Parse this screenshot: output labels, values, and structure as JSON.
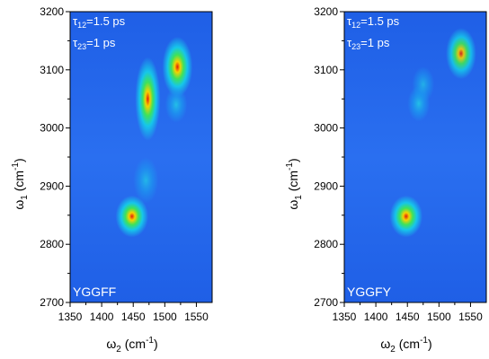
{
  "chart_data": [
    {
      "type": "heatmap",
      "title": "",
      "xlabel_base": "ω",
      "xlabel_sub": "2",
      "xlabel_unit_pre": " (cm",
      "xlabel_unit_sup": "-1",
      "xlabel_unit_post": ")",
      "ylabel_base": "ω",
      "ylabel_sub": "1",
      "ylabel_unit_pre": " (cm",
      "ylabel_unit_sup": "-1",
      "ylabel_unit_post": ")",
      "xlim": [
        1350,
        1575
      ],
      "ylim": [
        2700,
        3200
      ],
      "x_ticks": [
        "1350",
        "1400",
        "1450",
        "1500",
        "1550"
      ],
      "x_tick_values": [
        1350,
        1400,
        1450,
        1500,
        1550
      ],
      "y_ticks": [
        "2700",
        "2800",
        "2900",
        "3000",
        "3100",
        "3200"
      ],
      "y_tick_values": [
        2700,
        2800,
        2900,
        3000,
        3100,
        3200
      ],
      "annotation1": {
        "sym": "τ",
        "sub": "12",
        "rest": "=1.5 ps"
      },
      "annotation2": {
        "sym": "τ",
        "sub": "23",
        "rest": "=1 ps"
      },
      "sample_label": "YGGFF",
      "peaks": [
        {
          "x": 1448,
          "y": 2848,
          "intensity": 1.0,
          "sx": 13,
          "sy": 18
        },
        {
          "x": 1473,
          "y": 3050,
          "intensity": 1.0,
          "sx": 10,
          "sy": 36
        },
        {
          "x": 1520,
          "y": 3105,
          "intensity": 1.0,
          "sx": 12,
          "sy": 26
        },
        {
          "x": 1470,
          "y": 2910,
          "intensity": 0.3,
          "sx": 9,
          "sy": 18
        },
        {
          "x": 1518,
          "y": 3040,
          "intensity": 0.4,
          "sx": 8,
          "sy": 14
        }
      ]
    },
    {
      "type": "heatmap",
      "title": "",
      "xlabel_base": "ω",
      "xlabel_sub": "2",
      "xlabel_unit_pre": " (cm",
      "xlabel_unit_sup": "-1",
      "xlabel_unit_post": ")",
      "ylabel_base": "ω",
      "ylabel_sub": "1",
      "ylabel_unit_pre": " (cm",
      "ylabel_unit_sup": "-1",
      "ylabel_unit_post": ")",
      "xlim": [
        1350,
        1575
      ],
      "ylim": [
        2700,
        3200
      ],
      "x_ticks": [
        "1350",
        "1400",
        "1450",
        "1500",
        "1550"
      ],
      "x_tick_values": [
        1350,
        1400,
        1450,
        1500,
        1550
      ],
      "y_ticks": [
        "2700",
        "2800",
        "2900",
        "3000",
        "3100",
        "3200"
      ],
      "y_tick_values": [
        2700,
        2800,
        2900,
        3000,
        3100,
        3200
      ],
      "annotation1": {
        "sym": "τ",
        "sub": "12",
        "rest": "=1.5 ps"
      },
      "annotation2": {
        "sym": "τ",
        "sub": "23",
        "rest": "=1 ps"
      },
      "sample_label": "YGGFY",
      "peaks": [
        {
          "x": 1448,
          "y": 2848,
          "intensity": 1.0,
          "sx": 13,
          "sy": 18
        },
        {
          "x": 1535,
          "y": 3128,
          "intensity": 0.9,
          "sx": 12,
          "sy": 22
        },
        {
          "x": 1468,
          "y": 3042,
          "intensity": 0.4,
          "sx": 8,
          "sy": 14
        },
        {
          "x": 1475,
          "y": 3075,
          "intensity": 0.25,
          "sx": 8,
          "sy": 14
        }
      ]
    }
  ]
}
